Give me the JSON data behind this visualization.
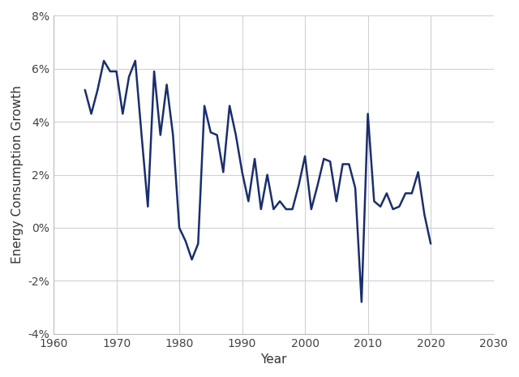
{
  "years": [
    1965,
    1966,
    1967,
    1968,
    1969,
    1970,
    1971,
    1972,
    1973,
    1974,
    1975,
    1976,
    1977,
    1978,
    1979,
    1980,
    1981,
    1982,
    1983,
    1984,
    1985,
    1986,
    1987,
    1988,
    1989,
    1990,
    1991,
    1992,
    1993,
    1994,
    1995,
    1996,
    1997,
    1998,
    1999,
    2000,
    2001,
    2002,
    2003,
    2004,
    2005,
    2006,
    2007,
    2008,
    2009,
    2010,
    2011,
    2012,
    2013,
    2014,
    2015,
    2016,
    2017,
    2018,
    2019,
    2020
  ],
  "values": [
    0.052,
    0.043,
    0.052,
    0.063,
    0.059,
    0.059,
    0.043,
    0.057,
    0.063,
    0.035,
    0.008,
    0.059,
    0.035,
    0.054,
    0.035,
    0.0,
    -0.005,
    -0.012,
    -0.006,
    0.046,
    0.036,
    0.035,
    0.021,
    0.046,
    0.035,
    0.021,
    0.01,
    0.026,
    0.007,
    0.02,
    0.007,
    0.01,
    0.007,
    0.007,
    0.016,
    0.027,
    0.007,
    0.016,
    0.026,
    0.025,
    0.01,
    0.024,
    0.024,
    0.015,
    -0.028,
    0.043,
    0.01,
    0.008,
    0.013,
    0.007,
    0.008,
    0.013,
    0.013,
    0.021,
    0.005,
    -0.006
  ],
  "line_color": "#1a2e6e",
  "line_width": 1.8,
  "background_color": "#ffffff",
  "grid_color": "#d0d0d8",
  "xlabel": "Year",
  "ylabel": "Energy Consumption Growth",
  "xlim": [
    1960,
    2030
  ],
  "ylim": [
    -0.04,
    0.08
  ],
  "xticks": [
    1960,
    1970,
    1980,
    1990,
    2000,
    2010,
    2020,
    2030
  ],
  "yticks": [
    -0.04,
    -0.02,
    0.0,
    0.02,
    0.04,
    0.06,
    0.08
  ],
  "ytick_labels": [
    "-4%",
    "-2%",
    "0%",
    "2%",
    "4%",
    "6%",
    "8%"
  ],
  "tick_label_fontsize": 10,
  "axis_label_fontsize": 11
}
